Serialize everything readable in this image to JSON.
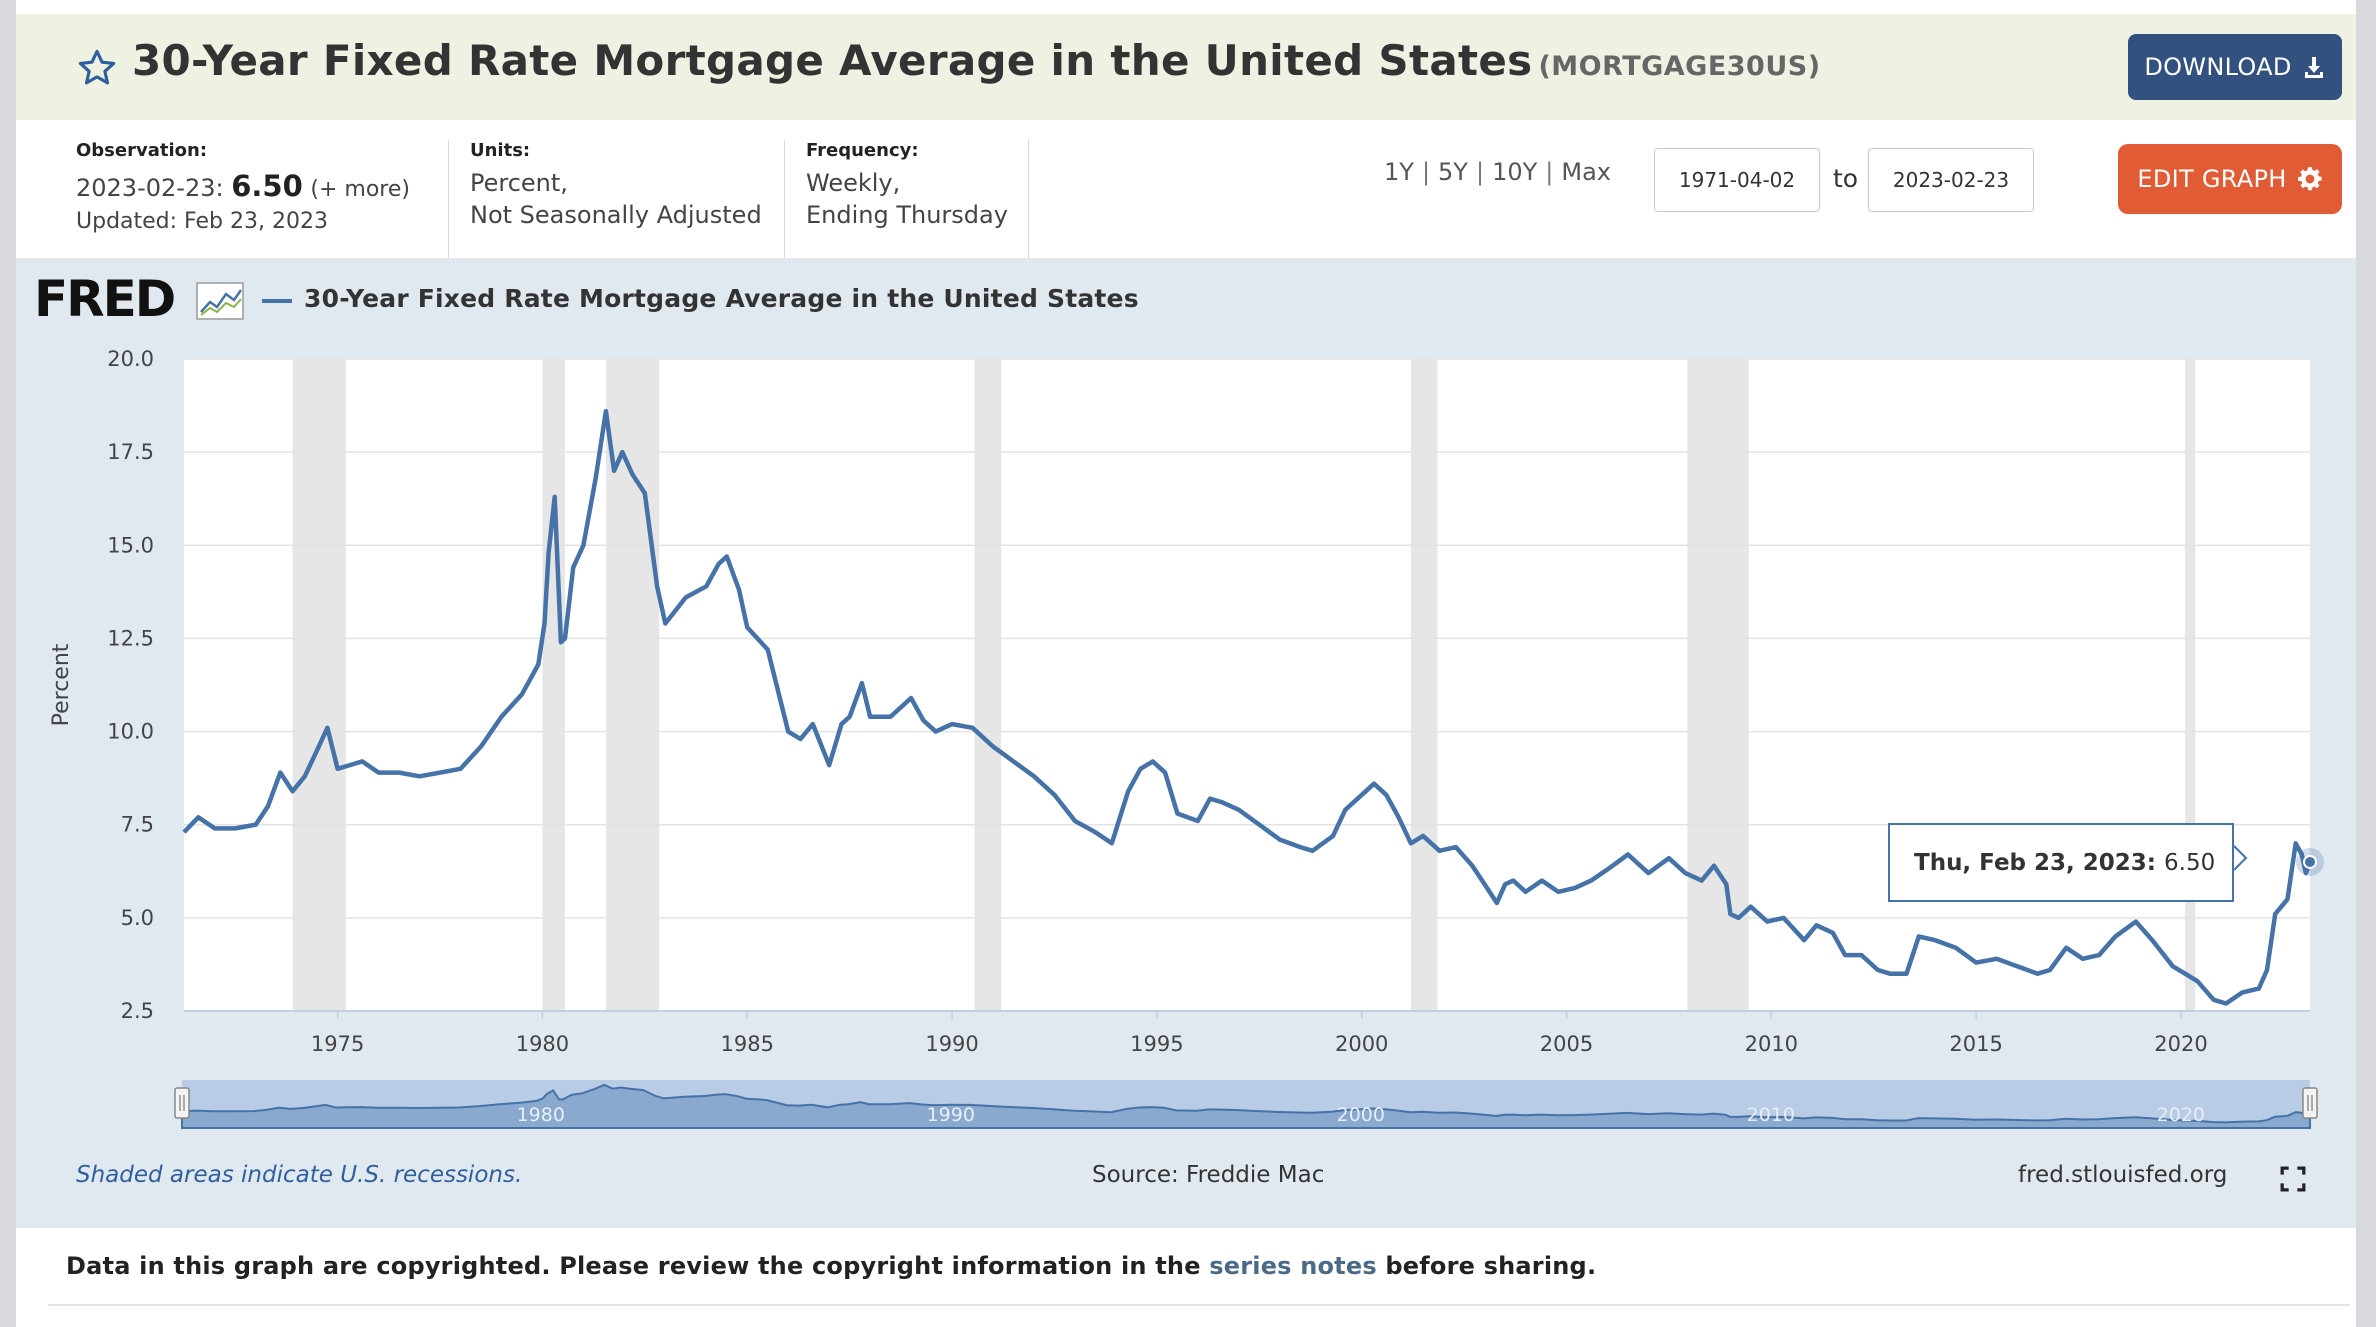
{
  "header": {
    "title": "30-Year Fixed Rate Mortgage Average in the United States",
    "series_id": "(MORTGAGE30US)",
    "download_label": "DOWNLOAD"
  },
  "meta": {
    "observation": {
      "label": "Observation:",
      "date": "2023-02-23:",
      "value": "6.50",
      "more": "(+ more)",
      "updated": "Updated: Feb 23, 2023"
    },
    "units": {
      "label": "Units:",
      "line1": "Percent,",
      "line2": "Not Seasonally Adjusted"
    },
    "frequency": {
      "label": "Frequency:",
      "line1": "Weekly,",
      "line2": "Ending Thursday"
    }
  },
  "range": {
    "links": [
      "1Y",
      "5Y",
      "10Y",
      "Max"
    ],
    "start": "1971-04-02",
    "to_label": "to",
    "end": "2023-02-23"
  },
  "edit_graph_label": "EDIT GRAPH",
  "legend": {
    "logo": "FRED",
    "series_label": "30-Year Fixed Rate Mortgage Average in the United States"
  },
  "tooltip": {
    "date": "Thu, Feb 23, 2023:",
    "value": "6.50"
  },
  "footer": {
    "recession_note": "Shaded areas indicate U.S. recessions.",
    "source": "Source: Freddie Mac",
    "url": "fred.stlouisfed.org"
  },
  "copyright": {
    "before": "Data in this graph are copyrighted. Please review the copyright information in the",
    "link": "series notes",
    "after": "before sharing."
  },
  "colors": {
    "series": "#4572a7",
    "recession": "#e6e6e6",
    "panel": "#e1e9f0",
    "download": "#33517e",
    "edit": "#e15b35"
  },
  "chart_data": {
    "type": "line",
    "title": "30-Year Fixed Rate Mortgage Average in the United States",
    "xlabel": "",
    "ylabel": "Percent",
    "xlim": [
      1971.25,
      2023.15
    ],
    "ylim": [
      2.5,
      20.0
    ],
    "y_ticks": [
      "2.5",
      "5.0",
      "7.5",
      "10.0",
      "12.5",
      "15.0",
      "17.5",
      "20.0"
    ],
    "x_ticks": [
      "1975",
      "1980",
      "1985",
      "1990",
      "1995",
      "2000",
      "2005",
      "2010",
      "2015",
      "2020"
    ],
    "navigator_ticks": [
      "1980",
      "1990",
      "2000",
      "2010",
      "2020"
    ],
    "recessions": [
      [
        1973.9,
        1975.2
      ],
      [
        1980.0,
        1980.55
      ],
      [
        1981.55,
        1982.85
      ],
      [
        1990.55,
        1991.2
      ],
      [
        2001.2,
        2001.85
      ],
      [
        2007.95,
        2009.45
      ],
      [
        2020.1,
        2020.35
      ]
    ],
    "series": [
      {
        "name": "MORTGAGE30US",
        "x": [
          1971.25,
          1971.6,
          1972.0,
          1972.5,
          1973.0,
          1973.3,
          1973.6,
          1973.9,
          1974.2,
          1974.5,
          1974.75,
          1975.0,
          1975.3,
          1975.6,
          1976.0,
          1976.5,
          1977.0,
          1977.5,
          1978.0,
          1978.5,
          1979.0,
          1979.5,
          1979.9,
          1980.05,
          1980.15,
          1980.3,
          1980.45,
          1980.55,
          1980.75,
          1981.0,
          1981.3,
          1981.55,
          1981.75,
          1981.95,
          1982.2,
          1982.5,
          1982.8,
          1983.0,
          1983.5,
          1984.0,
          1984.3,
          1984.5,
          1984.8,
          1985.0,
          1985.5,
          1986.0,
          1986.3,
          1986.6,
          1987.0,
          1987.3,
          1987.5,
          1987.8,
          1988.0,
          1988.5,
          1989.0,
          1989.3,
          1989.6,
          1990.0,
          1990.5,
          1991.0,
          1991.5,
          1992.0,
          1992.5,
          1993.0,
          1993.5,
          1993.9,
          1994.3,
          1994.6,
          1994.9,
          1995.2,
          1995.5,
          1996.0,
          1996.3,
          1996.6,
          1997.0,
          1997.5,
          1998.0,
          1998.5,
          1998.8,
          1999.3,
          1999.6,
          2000.0,
          2000.3,
          2000.6,
          2000.9,
          2001.2,
          2001.5,
          2001.9,
          2002.3,
          2002.7,
          2003.0,
          2003.3,
          2003.5,
          2003.7,
          2004.0,
          2004.4,
          2004.8,
          2005.2,
          2005.6,
          2006.0,
          2006.5,
          2007.0,
          2007.5,
          2007.9,
          2008.3,
          2008.6,
          2008.9,
          2009.0,
          2009.2,
          2009.5,
          2009.9,
          2010.3,
          2010.8,
          2011.1,
          2011.5,
          2011.8,
          2012.2,
          2012.6,
          2012.9,
          2013.3,
          2013.6,
          2014.0,
          2014.5,
          2015.0,
          2015.5,
          2016.0,
          2016.5,
          2016.8,
          2017.2,
          2017.6,
          2018.0,
          2018.4,
          2018.9,
          2019.3,
          2019.8,
          2020.1,
          2020.4,
          2020.8,
          2021.1,
          2021.5,
          2021.9,
          2022.1,
          2022.3,
          2022.6,
          2022.8,
          2022.95,
          2023.05,
          2023.15
        ],
        "values": [
          7.3,
          7.7,
          7.4,
          7.4,
          7.5,
          8.0,
          8.9,
          8.4,
          8.8,
          9.5,
          10.1,
          9.0,
          9.1,
          9.2,
          8.9,
          8.9,
          8.8,
          8.9,
          9.0,
          9.6,
          10.4,
          11.0,
          11.8,
          12.9,
          14.8,
          16.3,
          12.4,
          12.5,
          14.4,
          15.0,
          16.8,
          18.6,
          17.0,
          17.5,
          16.9,
          16.4,
          13.9,
          12.9,
          13.6,
          13.9,
          14.5,
          14.7,
          13.8,
          12.8,
          12.2,
          10.0,
          9.8,
          10.2,
          9.1,
          10.2,
          10.4,
          11.3,
          10.4,
          10.4,
          10.9,
          10.3,
          10.0,
          10.2,
          10.1,
          9.6,
          9.2,
          8.8,
          8.3,
          7.6,
          7.3,
          7.0,
          8.4,
          9.0,
          9.2,
          8.9,
          7.8,
          7.6,
          8.2,
          8.1,
          7.9,
          7.5,
          7.1,
          6.9,
          6.8,
          7.2,
          7.9,
          8.3,
          8.6,
          8.3,
          7.7,
          7.0,
          7.2,
          6.8,
          6.9,
          6.4,
          5.9,
          5.4,
          5.9,
          6.0,
          5.7,
          6.0,
          5.7,
          5.8,
          6.0,
          6.3,
          6.7,
          6.2,
          6.6,
          6.2,
          6.0,
          6.4,
          5.9,
          5.1,
          5.0,
          5.3,
          4.9,
          5.0,
          4.4,
          4.8,
          4.6,
          4.0,
          4.0,
          3.6,
          3.5,
          3.5,
          4.5,
          4.4,
          4.2,
          3.8,
          3.9,
          3.7,
          3.5,
          3.6,
          4.2,
          3.9,
          4.0,
          4.5,
          4.9,
          4.4,
          3.7,
          3.5,
          3.3,
          2.8,
          2.7,
          3.0,
          3.1,
          3.6,
          5.1,
          5.5,
          7.0,
          6.7,
          6.2,
          6.5
        ]
      }
    ]
  }
}
